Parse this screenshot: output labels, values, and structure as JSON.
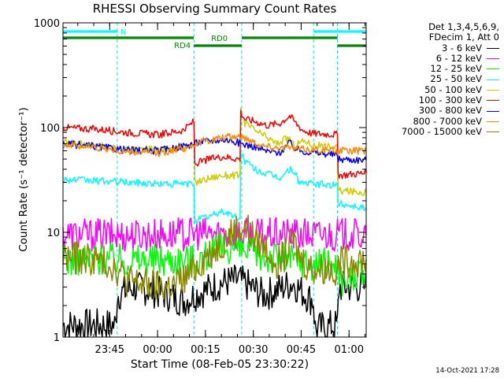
{
  "chart_data": {
    "type": "line",
    "title": "RHESSI Observing Summary Count Rates",
    "xlabel": "Start Time (08-Feb-05 23:30:22)",
    "ylabel": "Count Rate (s⁻¹ detector⁻¹)",
    "y_scale": "log",
    "ylim": [
      1,
      1000
    ],
    "y_ticks": [
      "1",
      "10",
      "100",
      "1000"
    ],
    "x_range_minutes": [
      0,
      95
    ],
    "x_ticks": [
      {
        "label": "23:45",
        "t": 14.63
      },
      {
        "label": "00:00",
        "t": 29.63
      },
      {
        "label": "00:15",
        "t": 44.63
      },
      {
        "label": "00:30",
        "t": 59.63
      },
      {
        "label": "00:45",
        "t": 74.63
      },
      {
        "label": "01:00",
        "t": 89.63
      }
    ],
    "state_bars": [
      {
        "label": "N",
        "color": "#00ffff",
        "segments": [
          [
            0,
            17
          ],
          [
            78.5,
            95
          ]
        ]
      },
      {
        "label": "RD0",
        "color": "#008800",
        "segments": [
          [
            0,
            41
          ],
          [
            56,
            86
          ]
        ]
      },
      {
        "label": "RD4",
        "color": "#008800",
        "segments": [
          [
            41,
            56
          ],
          [
            86,
            95
          ]
        ]
      }
    ],
    "legend_header": [
      "Det 1,3,4,5,6,9,",
      "FDecim 1, Att 0"
    ],
    "series": [
      {
        "name": "3 - 6 keV",
        "color": "#000000",
        "points": [
          [
            0,
            1.3
          ],
          [
            16.5,
            1.3
          ],
          [
            17,
            2.5
          ],
          [
            22,
            3
          ],
          [
            27,
            2.8
          ],
          [
            33,
            2.5
          ],
          [
            38,
            2.2
          ],
          [
            41,
            2.5
          ],
          [
            50,
            3.3
          ],
          [
            55,
            3.5
          ],
          [
            58,
            3.1
          ],
          [
            63,
            2.5
          ],
          [
            68,
            2.9
          ],
          [
            72,
            3.3
          ],
          [
            76,
            2.5
          ],
          [
            78.5,
            2.2
          ],
          [
            79,
            1.2
          ],
          [
            86,
            1.3
          ],
          [
            86.5,
            3
          ],
          [
            95,
            3
          ]
        ]
      },
      {
        "name": "6 - 12 keV",
        "color": "#ff00ff",
        "points": [
          [
            0,
            9.5
          ],
          [
            10,
            9.5
          ],
          [
            20,
            9.4
          ],
          [
            30,
            9.5
          ],
          [
            40,
            9.6
          ],
          [
            50,
            9.8
          ],
          [
            60,
            9.5
          ],
          [
            70,
            9.5
          ],
          [
            80,
            9.5
          ],
          [
            86,
            9.5
          ],
          [
            86.5,
            9.5
          ],
          [
            95,
            9.3
          ]
        ]
      },
      {
        "name": "12 - 25 keV",
        "color": "#00ff00",
        "points": [
          [
            0,
            5.5
          ],
          [
            10,
            5.6
          ],
          [
            20,
            5.5
          ],
          [
            30,
            5.5
          ],
          [
            41,
            5.5
          ],
          [
            45,
            6
          ],
          [
            50,
            7
          ],
          [
            53,
            7.3
          ],
          [
            56,
            6.8
          ],
          [
            60,
            6
          ],
          [
            70,
            5.6
          ],
          [
            75,
            5.3
          ],
          [
            78,
            5
          ],
          [
            80,
            5
          ],
          [
            86,
            5
          ],
          [
            86.5,
            3.5
          ],
          [
            95,
            4
          ]
        ]
      },
      {
        "name": "25 - 50 keV",
        "color": "#00ffff",
        "points": [
          [
            0,
            32
          ],
          [
            10,
            31
          ],
          [
            20,
            30
          ],
          [
            30,
            29
          ],
          [
            38,
            29
          ],
          [
            41,
            29
          ],
          [
            41.3,
            13
          ],
          [
            47,
            14.5
          ],
          [
            50,
            16
          ],
          [
            54,
            14
          ],
          [
            55.5,
            13
          ],
          [
            55.7,
            60
          ],
          [
            57,
            48
          ],
          [
            60,
            40
          ],
          [
            64,
            36
          ],
          [
            68,
            33
          ],
          [
            71,
            40
          ],
          [
            72.5,
            38
          ],
          [
            74,
            30
          ],
          [
            78,
            29
          ],
          [
            86,
            28
          ],
          [
            86.2,
            19
          ],
          [
            95,
            17
          ]
        ]
      },
      {
        "name": "50 - 100 keV",
        "color": "#cccc00",
        "points": [
          [
            0,
            72
          ],
          [
            10,
            68
          ],
          [
            20,
            62
          ],
          [
            30,
            62
          ],
          [
            38,
            64
          ],
          [
            40,
            66
          ],
          [
            41.2,
            68
          ],
          [
            41.3,
            30
          ],
          [
            46,
            33
          ],
          [
            50,
            35
          ],
          [
            55.5,
            35
          ],
          [
            55.7,
            150
          ],
          [
            57,
            110
          ],
          [
            60,
            95
          ],
          [
            64,
            80
          ],
          [
            67,
            70
          ],
          [
            69,
            76
          ],
          [
            71,
            80
          ],
          [
            72.5,
            65
          ],
          [
            74,
            72
          ],
          [
            76,
            75
          ],
          [
            78,
            68
          ],
          [
            86,
            65
          ],
          [
            86.2,
            25
          ],
          [
            95,
            24
          ]
        ]
      },
      {
        "name": "100 - 300 keV",
        "color": "#ff0000",
        "points": [
          [
            0,
            100
          ],
          [
            10,
            97
          ],
          [
            20,
            90
          ],
          [
            30,
            85
          ],
          [
            38,
            95
          ],
          [
            41,
            115
          ],
          [
            41.3,
            45
          ],
          [
            46,
            50
          ],
          [
            50,
            53
          ],
          [
            55.5,
            50
          ],
          [
            55.7,
            140
          ],
          [
            57,
            120
          ],
          [
            60,
            115
          ],
          [
            64,
            105
          ],
          [
            68,
            110
          ],
          [
            71,
            130
          ],
          [
            73,
            110
          ],
          [
            75,
            95
          ],
          [
            78,
            88
          ],
          [
            86,
            86
          ],
          [
            86.2,
            35
          ],
          [
            95,
            37
          ]
        ]
      },
      {
        "name": "300 - 800 keV",
        "color": "#0000ff",
        "points": [
          [
            0,
            70
          ],
          [
            10,
            66
          ],
          [
            20,
            61
          ],
          [
            30,
            60
          ],
          [
            38,
            67
          ],
          [
            44,
            74
          ],
          [
            50,
            77
          ],
          [
            53,
            75
          ],
          [
            56,
            70
          ],
          [
            60,
            66
          ],
          [
            64,
            59
          ],
          [
            68,
            58
          ],
          [
            71,
            72
          ],
          [
            73,
            62
          ],
          [
            76,
            59
          ],
          [
            80,
            57
          ],
          [
            86,
            55
          ],
          [
            86.3,
            50
          ],
          [
            95,
            49
          ]
        ]
      },
      {
        "name": "800 - 7000 keV",
        "color": "#ff8800",
        "points": [
          [
            0,
            69
          ],
          [
            10,
            65
          ],
          [
            20,
            58
          ],
          [
            30,
            57
          ],
          [
            38,
            64
          ],
          [
            44,
            74
          ],
          [
            50,
            80
          ],
          [
            55,
            83
          ],
          [
            58,
            78
          ],
          [
            62,
            68
          ],
          [
            66,
            65
          ],
          [
            71,
            64
          ],
          [
            75,
            62
          ],
          [
            80,
            62
          ],
          [
            86,
            60
          ],
          [
            95,
            60
          ]
        ]
      },
      {
        "name": "7000 - 15000 keV",
        "color": "#888800",
        "points": [
          [
            0,
            5.8
          ],
          [
            10,
            5.5
          ],
          [
            16,
            4.8
          ],
          [
            20,
            3.5
          ],
          [
            25,
            3.2
          ],
          [
            30,
            3
          ],
          [
            35,
            3.1
          ],
          [
            40,
            4
          ],
          [
            45,
            6
          ],
          [
            50,
            8
          ],
          [
            53,
            10
          ],
          [
            55,
            11
          ],
          [
            58,
            10.5
          ],
          [
            61,
            8
          ],
          [
            64,
            7
          ],
          [
            67,
            5.2
          ],
          [
            70,
            6
          ],
          [
            72,
            8.5
          ],
          [
            74,
            6
          ],
          [
            76,
            5
          ],
          [
            78,
            4.5
          ],
          [
            86,
            4.5
          ],
          [
            86.5,
            5.2
          ],
          [
            95,
            5.5
          ]
        ]
      }
    ]
  },
  "timestamp": "14-Oct-2021 17:28"
}
